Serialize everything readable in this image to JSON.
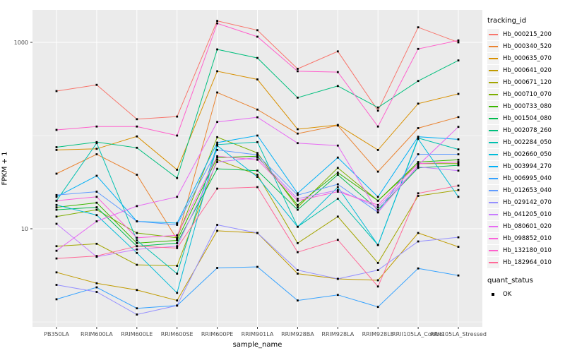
{
  "chart_data": {
    "type": "line",
    "title": "",
    "xlabel": "sample_name",
    "ylabel": "FPKM + 1",
    "y_scale": "log10",
    "ylim": [
      1,
      2400
    ],
    "grid": true,
    "panel_bg": "#EBEBEB",
    "grid_color": "#FFFFFF",
    "point_color": "#000000",
    "tick_label_color": "#4D4D4D",
    "y_ticks": [
      {
        "label": "1000",
        "value": 1000
      },
      {
        "label": "10",
        "value": 10
      }
    ],
    "y_minor_gridlines": [
      1,
      100
    ],
    "categories": [
      "PB350LA",
      "RRIM600LA",
      "RRIM600LE",
      "RRIM600SE",
      "RRIM600PE",
      "RRIM901LA",
      "RRIM928BA",
      "RRIM928LA",
      "RRIM928LE",
      "RRII105LA_Control",
      "RRII105LA_Stressed"
    ],
    "legend": {
      "title": "tracking_id",
      "position": "right"
    },
    "quant_legend": {
      "title": "quant_status",
      "items": [
        {
          "label": "OK",
          "marker": "black-square"
        }
      ]
    },
    "series": [
      {
        "name": "Hb_000215_200",
        "color": "#F8766D",
        "values": [
          300,
          350,
          150,
          160,
          1700,
          1350,
          520,
          800,
          185,
          1450,
          1000
        ]
      },
      {
        "name": "Hb_000340_520",
        "color": "#EA8331",
        "values": [
          39,
          63,
          38,
          7.7,
          290,
          190,
          105,
          128,
          41,
          120,
          158
        ]
      },
      {
        "name": "Hb_000635_070",
        "color": "#D89000",
        "values": [
          70,
          72,
          98,
          43,
          490,
          400,
          117,
          130,
          70,
          220,
          280
        ]
      },
      {
        "name": "Hb_000641_020",
        "color": "#C09B00",
        "values": [
          3.4,
          2.6,
          2.2,
          1.7,
          9.5,
          9,
          3.3,
          2.9,
          2.8,
          9,
          6.4
        ]
      },
      {
        "name": "Hb_000671_120",
        "color": "#A3A500",
        "values": [
          6.5,
          6.9,
          4.1,
          4,
          55,
          38,
          7,
          13.5,
          4.3,
          22.5,
          26
        ]
      },
      {
        "name": "Hb_000710_070",
        "color": "#7CAE00",
        "values": [
          13.5,
          16,
          9,
          8,
          96,
          65,
          17,
          45,
          20,
          50,
          50
        ]
      },
      {
        "name": "Hb_000733_080",
        "color": "#39B600",
        "values": [
          17,
          19,
          7,
          7.5,
          58,
          60,
          18,
          40,
          20,
          52,
          55
        ]
      },
      {
        "name": "Hb_001504_080",
        "color": "#00BB4E",
        "values": [
          16,
          17,
          6.5,
          7,
          44,
          42,
          16,
          38,
          16,
          45,
          48
        ]
      },
      {
        "name": "Hb_002078_260",
        "color": "#00BF7D",
        "values": [
          75,
          85,
          74,
          35,
          840,
          680,
          255,
          340,
          200,
          385,
          640
        ]
      },
      {
        "name": "Hb_002284_050",
        "color": "#00C0AF",
        "values": [
          20,
          83,
          7.5,
          3.3,
          80,
          85,
          10.5,
          21,
          6.7,
          94,
          71
        ]
      },
      {
        "name": "Hb_002660_050",
        "color": "#00BCD8",
        "values": [
          18,
          14,
          5.5,
          2.05,
          78,
          36,
          10.5,
          28,
          6.7,
          92,
          22
        ]
      },
      {
        "name": "Hb_003994_270",
        "color": "#00B0F6",
        "values": [
          22,
          37,
          12,
          11.5,
          84,
          100,
          24,
          58,
          22,
          97,
          91
        ]
      },
      {
        "name": "Hb_006995_040",
        "color": "#35A2FF",
        "values": [
          1.75,
          2.35,
          1.4,
          1.5,
          3.8,
          3.9,
          1.7,
          1.95,
          1.45,
          3.75,
          3.15
        ]
      },
      {
        "name": "Hb_012653_040",
        "color": "#619CFF",
        "values": [
          23,
          25,
          12,
          11,
          70,
          62,
          23,
          30,
          15,
          63,
          63
        ]
      },
      {
        "name": "Hb_029142_070",
        "color": "#9590FF",
        "values": [
          2.5,
          2.1,
          1.2,
          1.5,
          11,
          9,
          3.6,
          2.9,
          3.6,
          7.3,
          8.1
        ]
      },
      {
        "name": "Hb_041205_010",
        "color": "#C77CFF",
        "values": [
          11.3,
          5,
          6,
          6.5,
          52,
          58,
          21,
          26,
          17,
          46,
          42
        ]
      },
      {
        "name": "Hb_080601_020",
        "color": "#E76BF3",
        "values": [
          5.8,
          12,
          17.5,
          22,
          140,
          157,
          83,
          78,
          15,
          48,
          124
        ]
      },
      {
        "name": "Hb_098852_010",
        "color": "#FA62DB",
        "values": [
          20,
          22,
          8,
          8.5,
          60,
          55,
          20,
          25,
          18,
          50,
          52
        ]
      },
      {
        "name": "Hb_132180_010",
        "color": "#FF61CC",
        "values": [
          115,
          125,
          125,
          100,
          1600,
          1150,
          490,
          480,
          125,
          850,
          1050
        ]
      },
      {
        "name": "Hb_182964_010",
        "color": "#FF6A98",
        "values": [
          4.8,
          5.1,
          6.5,
          6.2,
          27,
          28,
          5.6,
          7.6,
          2.4,
          24,
          29
        ]
      }
    ]
  }
}
